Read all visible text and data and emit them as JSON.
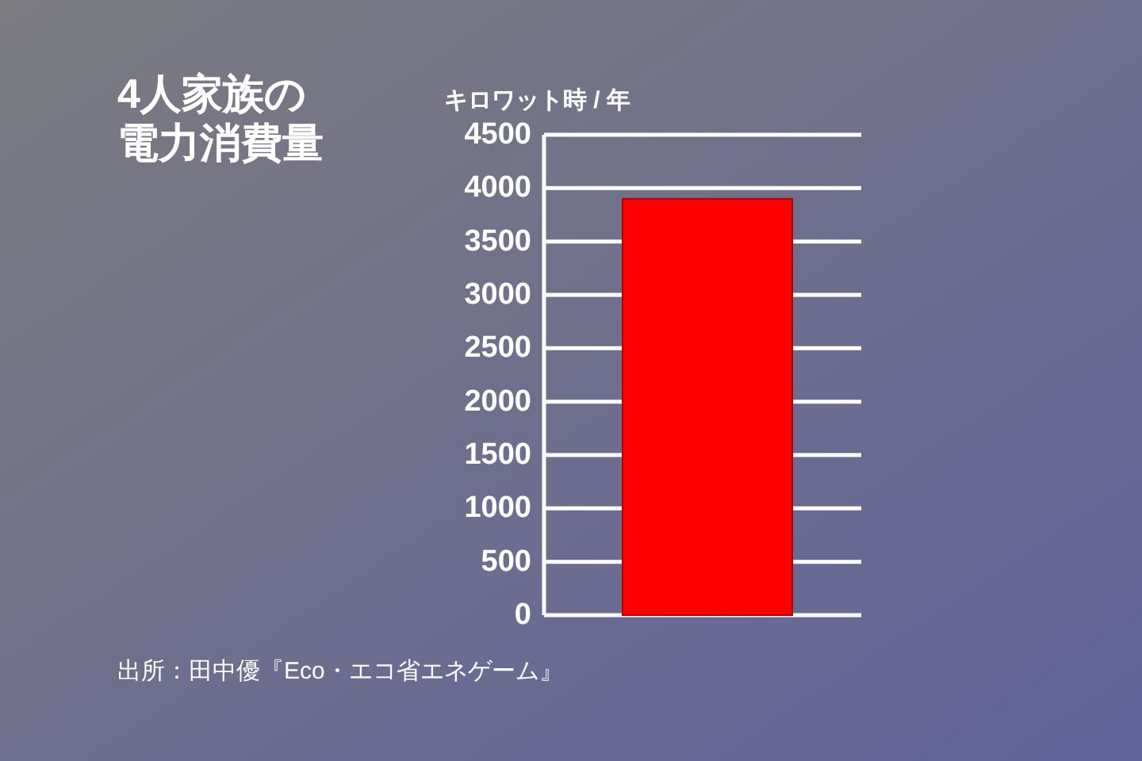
{
  "chart_data": {
    "type": "bar",
    "title": "4人家族の電力消費量",
    "ylabel": "キロワット時 / 年",
    "categories": [
      null
    ],
    "values": [
      3900
    ],
    "color": "#ff0000",
    "ylim": [
      0,
      4500
    ],
    "yticks": [
      0,
      500,
      1000,
      1500,
      2000,
      2500,
      3000,
      3500,
      4000,
      4500
    ],
    "grid": "y",
    "annotations": [
      "出所：田中優『Eco・エコ省エネゲーム』"
    ]
  }
}
